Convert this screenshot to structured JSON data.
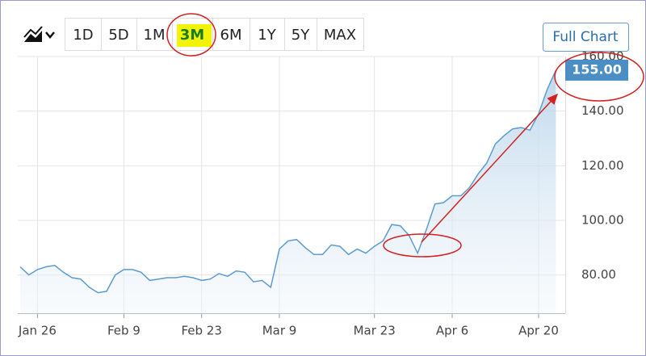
{
  "toolbar": {
    "ranges": [
      "1D",
      "5D",
      "1M",
      "3M",
      "6M",
      "1Y",
      "5Y",
      "MAX"
    ],
    "selected": "3M",
    "full_chart": "Full Chart"
  },
  "chart_data": {
    "type": "area",
    "categories": [
      null,
      null,
      "Jan 26",
      null,
      null,
      null,
      null,
      null,
      null,
      null,
      null,
      null,
      "Feb 9",
      null,
      null,
      null,
      null,
      null,
      null,
      null,
      null,
      "Feb 23",
      null,
      null,
      null,
      null,
      null,
      null,
      null,
      null,
      "Mar 9",
      null,
      null,
      null,
      null,
      null,
      null,
      null,
      null,
      null,
      null,
      "Mar 23",
      null,
      null,
      null,
      null,
      null,
      null,
      null,
      null,
      "Apr 6",
      null,
      null,
      null,
      null,
      null,
      null,
      null,
      null,
      null,
      "Apr 20",
      null,
      null
    ],
    "values": [
      83,
      80,
      82,
      83,
      83.5,
      81,
      79,
      78.5,
      75.5,
      73.5,
      74,
      80,
      82,
      82,
      81,
      78,
      78.5,
      79,
      79,
      79.5,
      79,
      78,
      78.5,
      80.5,
      79.5,
      81.5,
      81,
      77.5,
      78,
      75.5,
      89.5,
      92.5,
      93,
      90,
      87.5,
      87.5,
      91,
      90.5,
      87.5,
      89.5,
      88,
      90.5,
      92.5,
      98.5,
      98,
      94.5,
      88,
      96.5,
      106,
      106.5,
      109,
      109,
      112,
      117,
      121,
      128,
      131,
      133.5,
      134,
      133,
      139,
      148,
      155
    ],
    "color": "#5b9bd0",
    "last_price": {
      "value": 155,
      "label": "155.00"
    },
    "ylim": [
      66,
      160
    ],
    "yticks": [
      {
        "value": 80,
        "label": "80.00"
      },
      {
        "value": 100,
        "label": "100.00"
      },
      {
        "value": 120,
        "label": "120.00"
      },
      {
        "value": 140,
        "label": "140.00"
      },
      {
        "value": 160,
        "label": "160.00"
      }
    ],
    "grid": true
  }
}
